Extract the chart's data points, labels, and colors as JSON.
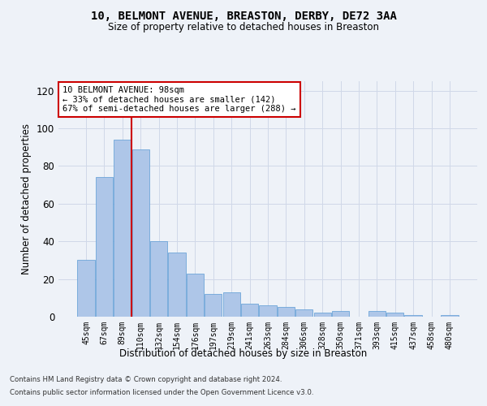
{
  "title_line1": "10, BELMONT AVENUE, BREASTON, DERBY, DE72 3AA",
  "title_line2": "Size of property relative to detached houses in Breaston",
  "xlabel": "Distribution of detached houses by size in Breaston",
  "ylabel": "Number of detached properties",
  "categories": [
    "45sqm",
    "67sqm",
    "89sqm",
    "110sqm",
    "132sqm",
    "154sqm",
    "176sqm",
    "197sqm",
    "219sqm",
    "241sqm",
    "263sqm",
    "284sqm",
    "306sqm",
    "328sqm",
    "350sqm",
    "371sqm",
    "393sqm",
    "415sqm",
    "437sqm",
    "458sqm",
    "480sqm"
  ],
  "values": [
    30,
    74,
    94,
    89,
    40,
    34,
    23,
    12,
    13,
    7,
    6,
    5,
    4,
    2,
    3,
    0,
    3,
    2,
    1,
    0,
    1
  ],
  "bar_color": "#aec6e8",
  "bar_edge_color": "#5b9bd5",
  "property_bin_index": 2,
  "annotation_text": "10 BELMONT AVENUE: 98sqm\n← 33% of detached houses are smaller (142)\n67% of semi-detached houses are larger (288) →",
  "annotation_box_color": "#ffffff",
  "annotation_box_edge_color": "#cc0000",
  "vline_color": "#cc0000",
  "ylim": [
    0,
    125
  ],
  "yticks": [
    0,
    20,
    40,
    60,
    80,
    100,
    120
  ],
  "grid_color": "#d0d8e8",
  "bg_color": "#eef2f8",
  "footer_line1": "Contains HM Land Registry data © Crown copyright and database right 2024.",
  "footer_line2": "Contains public sector information licensed under the Open Government Licence v3.0."
}
